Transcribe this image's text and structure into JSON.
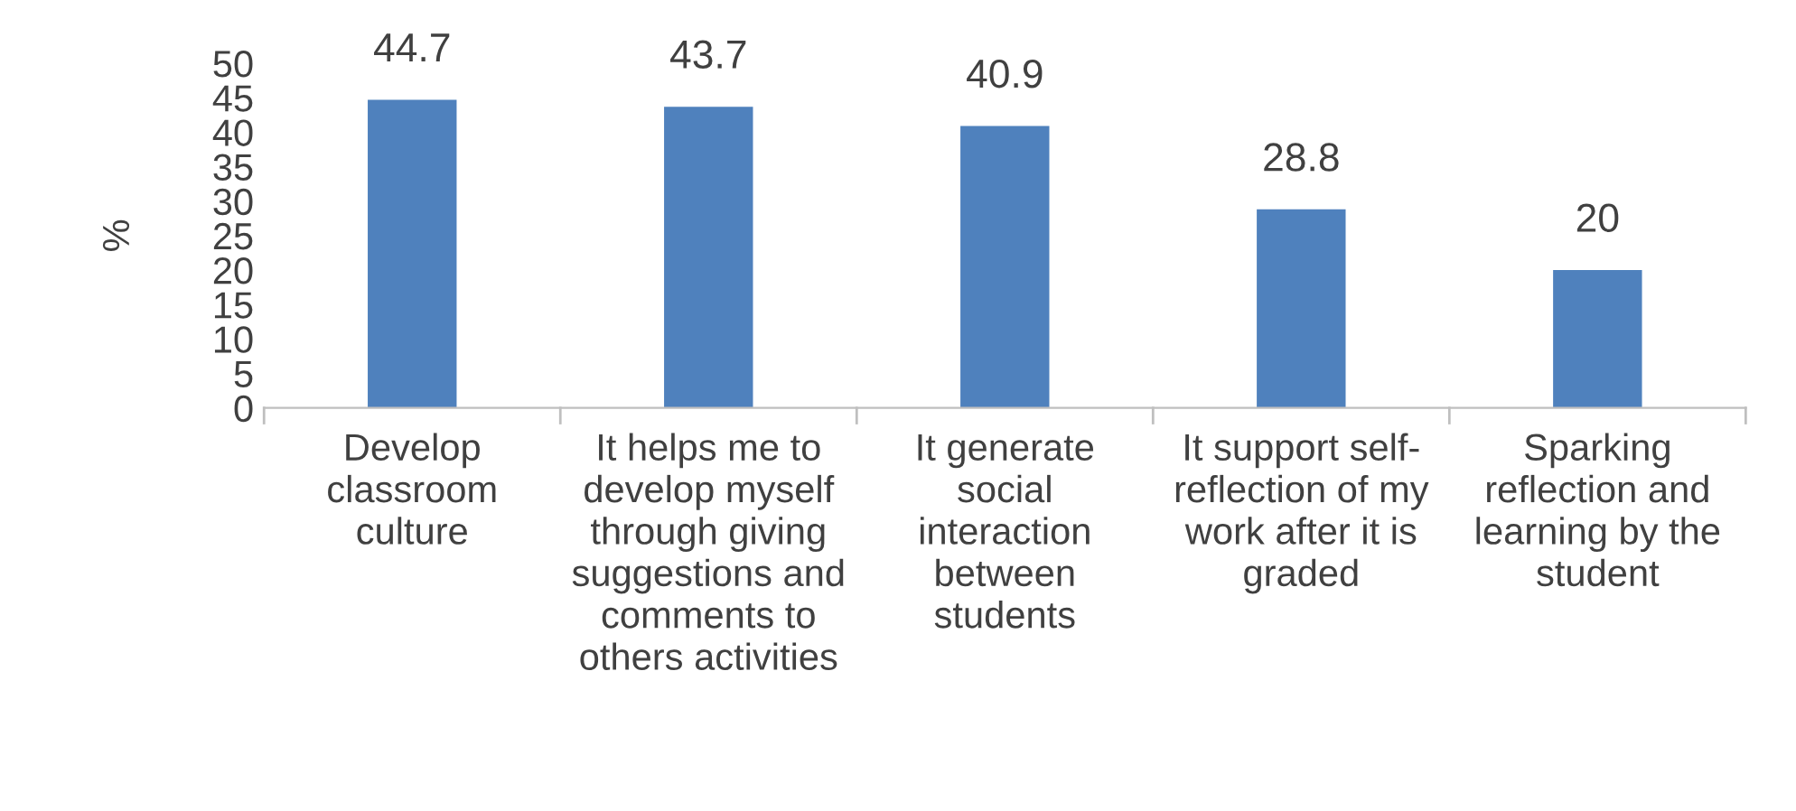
{
  "chart_data": {
    "type": "bar",
    "ylabel": "%",
    "categories": [
      "Develop\nclassroom\nculture",
      "It helps me to\ndevelop myself\nthrough giving\nsuggestions and\ncomments to\nothers activities",
      "It generate\nsocial\ninteraction\nbetween\nstudents",
      "It support self-\nreflection of my\nwork after it is\ngraded",
      "Sparking\nreflection and\nlearning by the\nstudent"
    ],
    "values": [
      44.7,
      43.7,
      40.9,
      28.8,
      20
    ],
    "color": "#4f81bd",
    "ylim": [
      0,
      50
    ],
    "yticks": [
      0,
      5,
      10,
      15,
      20,
      25,
      30,
      35,
      40,
      45,
      50
    ],
    "data_labels": true,
    "grid": false,
    "legend": false
  }
}
